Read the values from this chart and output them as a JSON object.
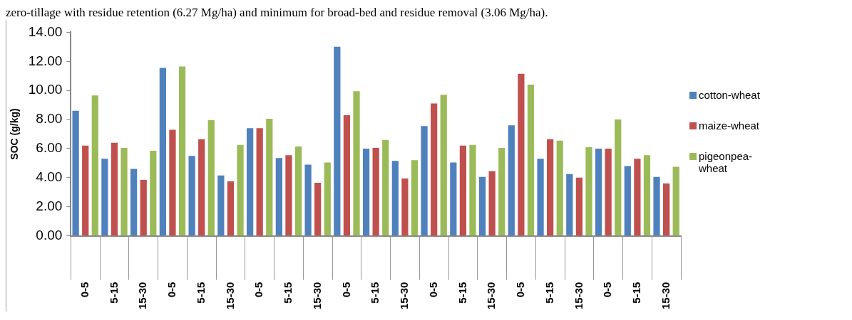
{
  "chart_data": {
    "type": "bar",
    "ylabel": "SOC (g/kg)",
    "annotations": [
      "zero-tillage with residue retention (6.27 Mg/ha) and minimum for broad-bed and residue removal (3.06 Mg/ha)."
    ],
    "categories": [
      "0-5",
      "5-15",
      "15-30",
      "0-5",
      "5-15",
      "15-30",
      "0-5",
      "5-15",
      "15-30",
      "0-5",
      "5-15",
      "15-30",
      "0-5",
      "5-15",
      "15-30",
      "0-5",
      "5-15",
      "15-30",
      "0-5",
      "5-15",
      "15-30"
    ],
    "series": [
      {
        "name": "cotton-wheat",
        "color": "#4f81bd",
        "values": [
          8.6,
          5.3,
          4.6,
          11.55,
          5.5,
          4.15,
          7.4,
          5.35,
          4.9,
          13.0,
          6.0,
          5.15,
          7.55,
          5.05,
          4.05,
          7.6,
          5.3,
          4.25,
          6.0,
          4.8,
          4.05
        ]
      },
      {
        "name": "maize-wheat",
        "color": "#c0504d",
        "values": [
          6.2,
          6.4,
          3.85,
          7.3,
          6.65,
          3.75,
          7.4,
          5.55,
          3.65,
          8.3,
          6.05,
          3.95,
          9.1,
          6.2,
          4.45,
          11.15,
          6.65,
          4.0,
          6.0,
          5.3,
          3.6
        ]
      },
      {
        "name": "pigeonpea-wheat",
        "color": "#9bbb59",
        "values": [
          9.65,
          6.05,
          5.85,
          11.65,
          7.95,
          6.25,
          8.05,
          6.15,
          5.05,
          9.95,
          6.6,
          5.2,
          9.7,
          6.25,
          6.05,
          10.4,
          6.55,
          6.1,
          8.0,
          5.55,
          4.75
        ]
      }
    ],
    "ylim": [
      0,
      14
    ],
    "yticks": [
      {
        "value": 0,
        "label": "0.00"
      },
      {
        "value": 2,
        "label": "2.00"
      },
      {
        "value": 4,
        "label": "4.00"
      },
      {
        "value": 6,
        "label": "6.00"
      },
      {
        "value": 8,
        "label": "8.00"
      },
      {
        "value": 10,
        "label": "10.00"
      },
      {
        "value": 12,
        "label": "12.00"
      },
      {
        "value": 14,
        "label": "14.00"
      }
    ],
    "grid": false,
    "legend": "right"
  }
}
